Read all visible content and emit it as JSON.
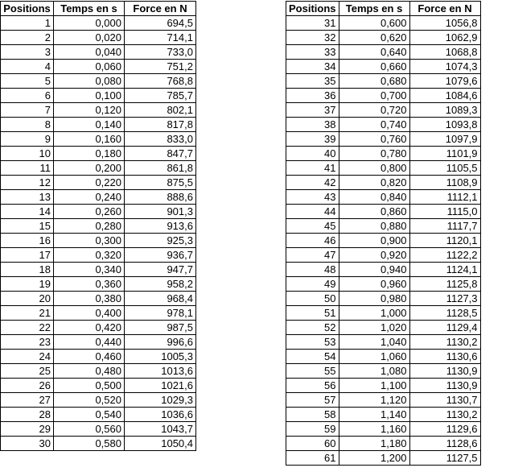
{
  "headers": {
    "position": "Positions",
    "time": "Temps en s",
    "force": "Force en N"
  },
  "left_rows": [
    [
      "1",
      "0,000",
      "694,5"
    ],
    [
      "2",
      "0,020",
      "714,1"
    ],
    [
      "3",
      "0,040",
      "733,0"
    ],
    [
      "4",
      "0,060",
      "751,2"
    ],
    [
      "5",
      "0,080",
      "768,8"
    ],
    [
      "6",
      "0,100",
      "785,7"
    ],
    [
      "7",
      "0,120",
      "802,1"
    ],
    [
      "8",
      "0,140",
      "817,8"
    ],
    [
      "9",
      "0,160",
      "833,0"
    ],
    [
      "10",
      "0,180",
      "847,7"
    ],
    [
      "11",
      "0,200",
      "861,8"
    ],
    [
      "12",
      "0,220",
      "875,5"
    ],
    [
      "13",
      "0,240",
      "888,6"
    ],
    [
      "14",
      "0,260",
      "901,3"
    ],
    [
      "15",
      "0,280",
      "913,6"
    ],
    [
      "16",
      "0,300",
      "925,3"
    ],
    [
      "17",
      "0,320",
      "936,7"
    ],
    [
      "18",
      "0,340",
      "947,7"
    ],
    [
      "19",
      "0,360",
      "958,2"
    ],
    [
      "20",
      "0,380",
      "968,4"
    ],
    [
      "21",
      "0,400",
      "978,1"
    ],
    [
      "22",
      "0,420",
      "987,5"
    ],
    [
      "23",
      "0,440",
      "996,6"
    ],
    [
      "24",
      "0,460",
      "1005,3"
    ],
    [
      "25",
      "0,480",
      "1013,6"
    ],
    [
      "26",
      "0,500",
      "1021,6"
    ],
    [
      "27",
      "0,520",
      "1029,3"
    ],
    [
      "28",
      "0,540",
      "1036,6"
    ],
    [
      "29",
      "0,560",
      "1043,7"
    ],
    [
      "30",
      "0,580",
      "1050,4"
    ]
  ],
  "right_rows": [
    [
      "31",
      "0,600",
      "1056,8"
    ],
    [
      "32",
      "0,620",
      "1062,9"
    ],
    [
      "33",
      "0,640",
      "1068,8"
    ],
    [
      "34",
      "0,660",
      "1074,3"
    ],
    [
      "35",
      "0,680",
      "1079,6"
    ],
    [
      "36",
      "0,700",
      "1084,6"
    ],
    [
      "37",
      "0,720",
      "1089,3"
    ],
    [
      "38",
      "0,740",
      "1093,8"
    ],
    [
      "39",
      "0,760",
      "1097,9"
    ],
    [
      "40",
      "0,780",
      "1101,9"
    ],
    [
      "41",
      "0,800",
      "1105,5"
    ],
    [
      "42",
      "0,820",
      "1108,9"
    ],
    [
      "43",
      "0,840",
      "1112,1"
    ],
    [
      "44",
      "0,860",
      "1115,0"
    ],
    [
      "45",
      "0,880",
      "1117,7"
    ],
    [
      "46",
      "0,900",
      "1120,1"
    ],
    [
      "47",
      "0,920",
      "1122,2"
    ],
    [
      "48",
      "0,940",
      "1124,1"
    ],
    [
      "49",
      "0,960",
      "1125,8"
    ],
    [
      "50",
      "0,980",
      "1127,3"
    ],
    [
      "51",
      "1,000",
      "1128,5"
    ],
    [
      "52",
      "1,020",
      "1129,4"
    ],
    [
      "53",
      "1,040",
      "1130,2"
    ],
    [
      "54",
      "1,060",
      "1130,6"
    ],
    [
      "55",
      "1,080",
      "1130,9"
    ],
    [
      "56",
      "1,100",
      "1130,9"
    ],
    [
      "57",
      "1,120",
      "1130,7"
    ],
    [
      "58",
      "1,140",
      "1130,2"
    ],
    [
      "59",
      "1,160",
      "1129,6"
    ],
    [
      "60",
      "1,180",
      "1128,6"
    ],
    [
      "61",
      "1,200",
      "1127,5"
    ]
  ]
}
